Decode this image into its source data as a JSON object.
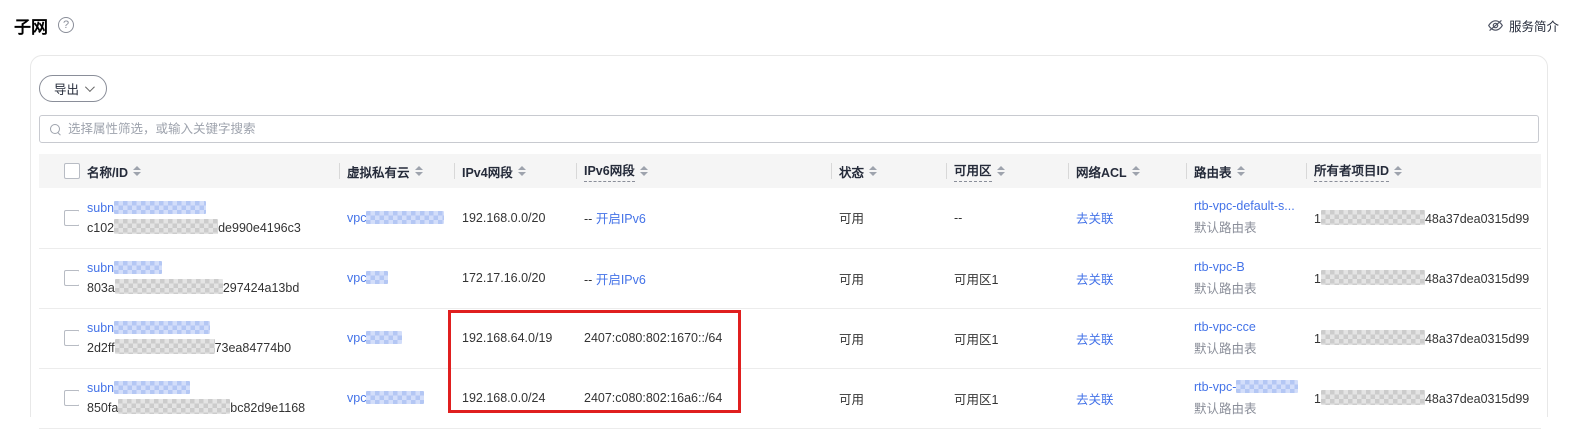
{
  "page": {
    "title": "子网",
    "service_intro_label": "服务简介"
  },
  "toolbar": {
    "export_label": "导出",
    "search_placeholder": "选择属性筛选，或输入关键字搜索"
  },
  "colors": {
    "link": "#4473e8",
    "highlight_border": "#e01f1f",
    "header_bg": "#f5f5f5"
  },
  "table": {
    "columns": [
      {
        "label": "名称/ID",
        "sortable": true,
        "dashed": false
      },
      {
        "label": "虚拟私有云",
        "sortable": true,
        "dashed": false
      },
      {
        "label": "IPv4网段",
        "sortable": true,
        "dashed": false
      },
      {
        "label": "IPv6网段",
        "sortable": true,
        "dashed": true
      },
      {
        "label": "状态",
        "sortable": true,
        "dashed": false
      },
      {
        "label": "可用区",
        "sortable": true,
        "dashed": true
      },
      {
        "label": "网络ACL",
        "sortable": true,
        "dashed": false
      },
      {
        "label": "路由表",
        "sortable": true,
        "dashed": false
      },
      {
        "label": "所有者项目ID",
        "sortable": true,
        "dashed": true
      }
    ],
    "rows": [
      {
        "name_prefix": "subn",
        "name_blur": 92,
        "id_prefix": "c102",
        "id_blur": 104,
        "id_suffix": "de990e4196c3",
        "vpc_prefix": "vpc",
        "vpc_blur": 78,
        "ipv4": "192.168.0.0/20",
        "ipv6_dash": "--",
        "ipv6_link": "开启IPv6",
        "ipv6_addr": "",
        "status": "可用",
        "az": "--",
        "acl_link": "去关联",
        "route_link": "rtb-vpc-default-s...",
        "route_blur": 0,
        "route_sub": "默认路由表",
        "owner_prefix": "1",
        "owner_blur": 104,
        "owner_suffix": "48a37dea0315d99"
      },
      {
        "name_prefix": "subn",
        "name_blur": 48,
        "id_prefix": "803a",
        "id_blur": 108,
        "id_suffix": "297424a13bd",
        "vpc_prefix": "vpc",
        "vpc_blur": 22,
        "ipv4": "172.17.16.0/20",
        "ipv6_dash": "--",
        "ipv6_link": "开启IPv6",
        "ipv6_addr": "",
        "status": "可用",
        "az": "可用区1",
        "acl_link": "去关联",
        "route_link": "rtb-vpc-B",
        "route_blur": 0,
        "route_sub": "默认路由表",
        "owner_prefix": "1",
        "owner_blur": 104,
        "owner_suffix": "48a37dea0315d99"
      },
      {
        "name_prefix": "subn",
        "name_blur": 96,
        "id_prefix": "2d2ff",
        "id_blur": 100,
        "id_suffix": "73ea84774b0",
        "vpc_prefix": "vpc",
        "vpc_blur": 36,
        "ipv4": "192.168.64.0/19",
        "ipv6_dash": "",
        "ipv6_link": "",
        "ipv6_addr": "2407:c080:802:1670::/64",
        "status": "可用",
        "az": "可用区1",
        "acl_link": "去关联",
        "route_link": "rtb-vpc-cce",
        "route_blur": 0,
        "route_sub": "默认路由表",
        "owner_prefix": "1",
        "owner_blur": 104,
        "owner_suffix": "48a37dea0315d99"
      },
      {
        "name_prefix": "subn",
        "name_blur": 76,
        "id_prefix": "850fa",
        "id_blur": 112,
        "id_suffix": "bc82d9e1168",
        "vpc_prefix": "vpc",
        "vpc_blur": 58,
        "ipv4": "192.168.0.0/24",
        "ipv6_dash": "",
        "ipv6_link": "",
        "ipv6_addr": "2407:c080:802:16a6::/64",
        "status": "可用",
        "az": "可用区1",
        "acl_link": "去关联",
        "route_link": "rtb-vpc-",
        "route_blur": 62,
        "route_sub": "默认路由表",
        "owner_prefix": "1",
        "owner_blur": 104,
        "owner_suffix": "48a37dea0315d99"
      }
    ]
  }
}
